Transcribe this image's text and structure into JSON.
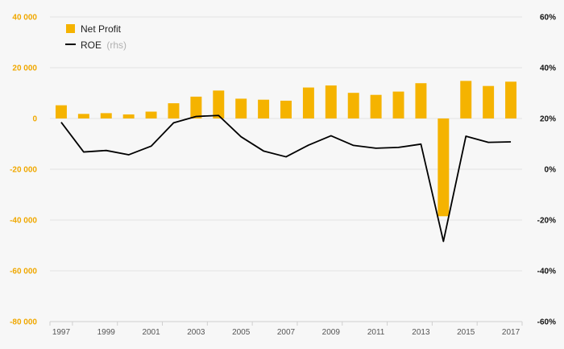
{
  "chart_data": {
    "type": "bar",
    "years": [
      1997,
      1998,
      1999,
      2000,
      2001,
      2002,
      2003,
      2004,
      2005,
      2006,
      2007,
      2008,
      2009,
      2010,
      2011,
      2012,
      2013,
      2014,
      2015,
      2016,
      2017
    ],
    "x_tick_labels": [
      "1997",
      "1999",
      "2001",
      "2003",
      "2005",
      "2007",
      "2009",
      "2011",
      "2013",
      "2015",
      "2017"
    ],
    "series": [
      {
        "name": "Net Profit",
        "type": "bar",
        "axis": "left",
        "color": "#f5b300",
        "values": [
          5200,
          1800,
          2100,
          1600,
          2700,
          6000,
          8600,
          11000,
          7800,
          7400,
          7000,
          12200,
          13000,
          10100,
          9300,
          10600,
          13900,
          -38500,
          14800,
          12800,
          14500
        ]
      },
      {
        "name": "ROE",
        "type": "line",
        "axis": "right",
        "color": "#000000",
        "values": [
          18.5,
          6.8,
          7.4,
          5.7,
          9.1,
          18.3,
          20.8,
          21.2,
          12.8,
          7.2,
          4.9,
          9.5,
          13.2,
          9.4,
          8.3,
          8.6,
          9.9,
          -28.4,
          13.0,
          10.6,
          10.8
        ]
      }
    ],
    "legend": {
      "net_profit_label": "Net Profit",
      "roe_label": "ROE",
      "roe_suffix": "(rhs)",
      "placement": "top-left"
    },
    "left_axis": {
      "ylim": [
        -80000,
        40000
      ],
      "ticks": [
        -80000,
        -60000,
        -40000,
        -20000,
        0,
        20000,
        40000
      ],
      "tick_labels": [
        "-80 000",
        "-60 000",
        "-40 000",
        "-20 000",
        "0",
        "20 000",
        "40 000"
      ],
      "color": "#f0a800"
    },
    "right_axis": {
      "ylim": [
        -60,
        60
      ],
      "ticks": [
        -60,
        -40,
        -20,
        0,
        20,
        40,
        60
      ],
      "tick_labels": [
        "-60%",
        "-40%",
        "-20%",
        "0%",
        "20%",
        "40%",
        "60%"
      ],
      "color": "#111111"
    },
    "grid": true
  }
}
